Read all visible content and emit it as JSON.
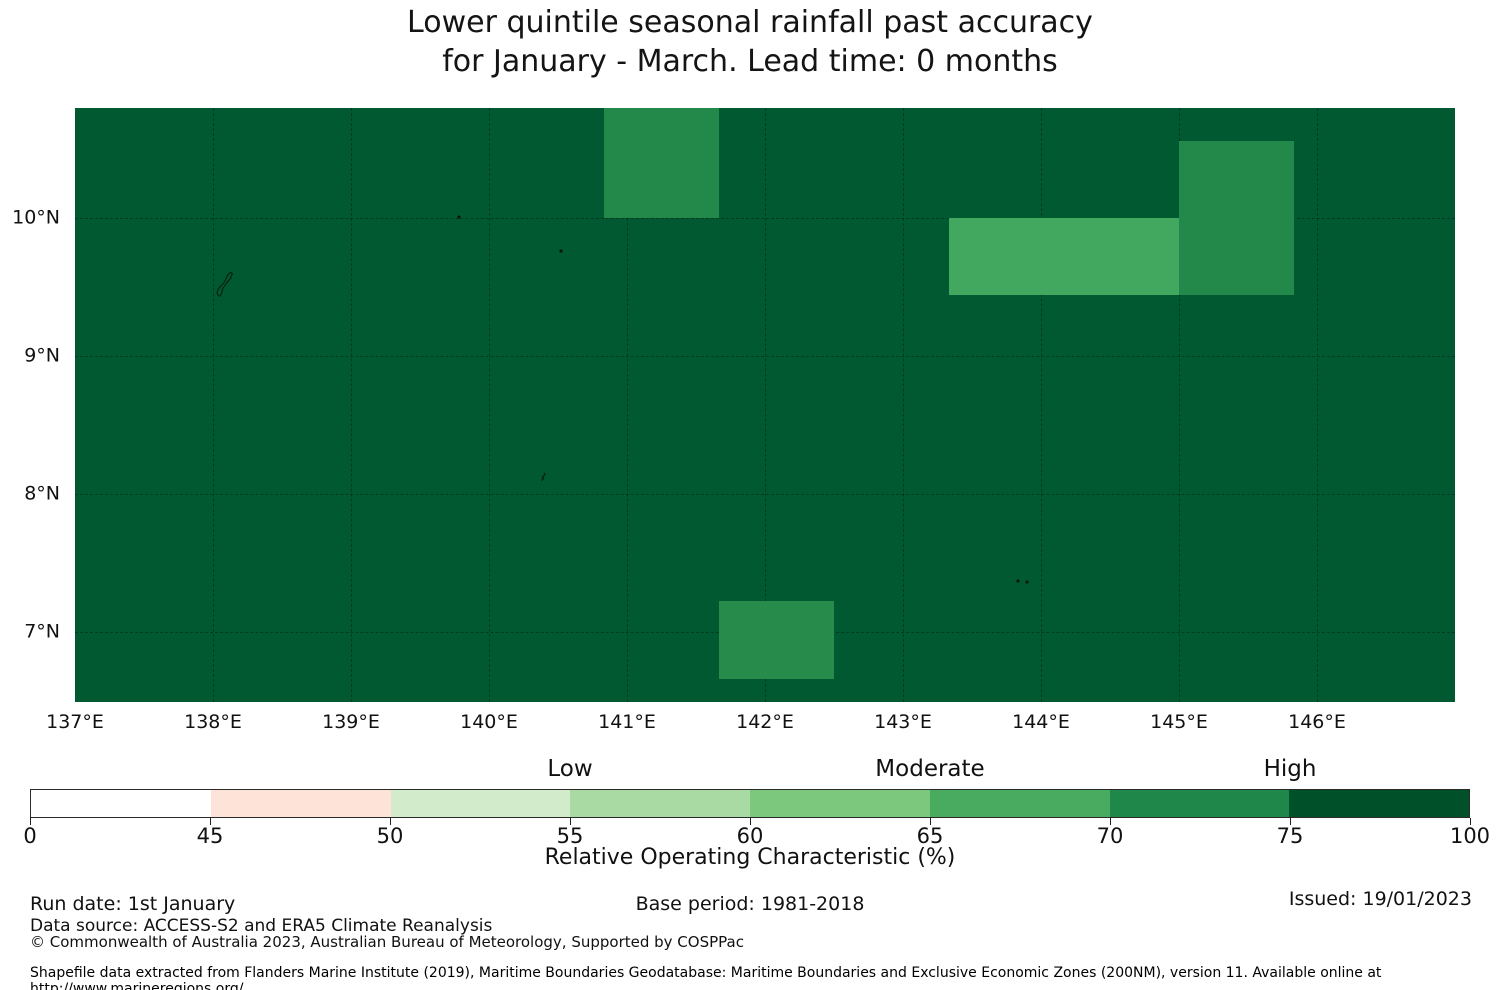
{
  "title": {
    "line1": "Lower quintile seasonal rainfall past accuracy",
    "line2": "for January - March. Lead time: 0 months"
  },
  "map_panel": {
    "geo": {
      "lon_min": 137,
      "lon_max": 147,
      "lat_min": 6.49,
      "lat_max": 10.8
    },
    "base_color": "#015931",
    "base_roc_bin": "75-100",
    "grid_lons": [
      138,
      139,
      140,
      141,
      142,
      143,
      144,
      145,
      146
    ],
    "grid_lats": [
      10,
      9,
      8,
      7
    ],
    "x_ticks": [
      {
        "lon": 137,
        "label": "137°E"
      },
      {
        "lon": 138,
        "label": "138°E"
      },
      {
        "lon": 139,
        "label": "139°E"
      },
      {
        "lon": 140,
        "label": "140°E"
      },
      {
        "lon": 141,
        "label": "141°E"
      },
      {
        "lon": 142,
        "label": "142°E"
      },
      {
        "lon": 143,
        "label": "143°E"
      },
      {
        "lon": 144,
        "label": "144°E"
      },
      {
        "lon": 145,
        "label": "145°E"
      },
      {
        "lon": 146,
        "label": "146°E"
      }
    ],
    "y_ticks": [
      {
        "lat": 10,
        "label": "10°N"
      },
      {
        "lat": 9,
        "label": "9°N"
      },
      {
        "lat": 8,
        "label": "8°N"
      },
      {
        "lat": 7,
        "label": "7°N"
      }
    ],
    "patches": [
      {
        "id": "cell-1",
        "lon_min": 140.83,
        "lon_max": 141.67,
        "lat_min": 10.0,
        "lat_max": 10.8,
        "roc_bin": "70-75",
        "color": "#23894A"
      },
      {
        "id": "cell-2",
        "lon_min": 145.0,
        "lon_max": 145.83,
        "lat_min": 9.44,
        "lat_max": 10.56,
        "roc_bin": "70-75",
        "color": "#23894A"
      },
      {
        "id": "cell-3",
        "lon_min": 143.33,
        "lon_max": 145.0,
        "lat_min": 9.44,
        "lat_max": 10.0,
        "roc_bin": "65-70",
        "color": "#42A75F"
      },
      {
        "id": "cell-4",
        "lon_min": 141.67,
        "lon_max": 142.5,
        "lat_min": 6.66,
        "lat_max": 7.22,
        "roc_bin": "70-75",
        "color": "#278C4B"
      }
    ],
    "islands": [
      {
        "id": "island-outline-1",
        "kind": "outline",
        "lon": 138.09,
        "lat": 9.52
      },
      {
        "id": "islet-dot-1",
        "kind": "dot",
        "lon": 139.78,
        "lat": 10.01
      },
      {
        "id": "islet-dot-2",
        "kind": "dot",
        "lon": 140.52,
        "lat": 9.76
      },
      {
        "id": "islet-squiggle-1",
        "kind": "squiggle",
        "lon": 140.4,
        "lat": 8.12
      },
      {
        "id": "islet-dot-3",
        "kind": "dot",
        "lon": 143.83,
        "lat": 7.37
      },
      {
        "id": "islet-dot-4",
        "kind": "dot",
        "lon": 143.9,
        "lat": 7.36
      }
    ]
  },
  "colorbar": {
    "bounds": [
      0,
      45,
      50,
      55,
      60,
      65,
      70,
      75,
      100
    ],
    "segment_colors": [
      "#FFFFFF",
      "#FDE3D8",
      "#D2EBCB",
      "#A9DAA4",
      "#7CC87D",
      "#48AB60",
      "#1F874A",
      "#00512A"
    ],
    "categories": [
      {
        "label": "Low",
        "at_value": 55
      },
      {
        "label": "Moderate",
        "at_value": 65
      },
      {
        "label": "High",
        "at_value": 75
      }
    ],
    "axis_label": "Relative Operating Characteristic (%)"
  },
  "footer": {
    "run_date": "Run date: 1st January",
    "base_period": "Base period: 1981-2018",
    "issued": "Issued: 19/01/2023",
    "data_source": "Data source: ACCESS-S2 and ERA5 Climate Reanalysis",
    "copyright": "© Commonwealth of Australia 2023, Australian Bureau of Meteorology, Supported by COSPPac",
    "shapefile_note": "Shapefile data extracted from Flanders Marine Institute (2019), Maritime Boundaries Geodatabase: Maritime Boundaries and Exclusive Economic Zones (200NM), version 11. Available online at http://www.marineregions.org/."
  },
  "chart_data": {
    "type": "heatmap",
    "title": "Lower quintile seasonal rainfall past accuracy for January - March. Lead time: 0 months",
    "x_tick_labels": [
      "137°E",
      "138°E",
      "139°E",
      "140°E",
      "141°E",
      "142°E",
      "143°E",
      "144°E",
      "145°E",
      "146°E"
    ],
    "y_tick_labels": [
      "10°N",
      "9°N",
      "8°N",
      "7°N"
    ],
    "lon_range": [
      137,
      147
    ],
    "lat_range": [
      6.5,
      10.8
    ],
    "value_units": "Relative Operating Characteristic (%)",
    "background_bin": "75-100",
    "cells": [
      {
        "lon_range": [
          140.83,
          141.67
        ],
        "lat_range": [
          10.0,
          10.8
        ],
        "roc_bin": "70-75"
      },
      {
        "lon_range": [
          145.0,
          145.83
        ],
        "lat_range": [
          9.44,
          10.56
        ],
        "roc_bin": "70-75"
      },
      {
        "lon_range": [
          143.33,
          145.0
        ],
        "lat_range": [
          9.44,
          10.0
        ],
        "roc_bin": "65-70"
      },
      {
        "lon_range": [
          141.67,
          142.5
        ],
        "lat_range": [
          6.66,
          7.22
        ],
        "roc_bin": "70-75"
      }
    ],
    "colorbar": {
      "label": "Relative Operating Characteristic (%)",
      "tick_labels": [
        0,
        45,
        50,
        55,
        60,
        65,
        70,
        75,
        100
      ],
      "category_labels": [
        "Low",
        "Moderate",
        "High"
      ],
      "legend_position": "bottom",
      "grid": true
    }
  }
}
